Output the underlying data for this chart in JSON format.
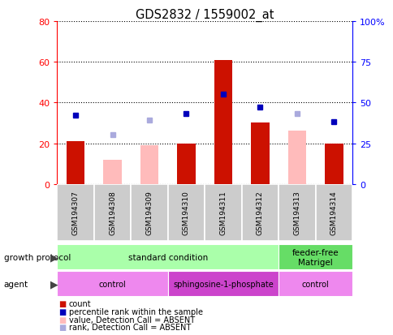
{
  "title": "GDS2832 / 1559002_at",
  "samples": [
    "GSM194307",
    "GSM194308",
    "GSM194309",
    "GSM194310",
    "GSM194311",
    "GSM194312",
    "GSM194313",
    "GSM194314"
  ],
  "count_values": [
    21,
    null,
    null,
    20,
    61,
    30,
    null,
    20
  ],
  "count_absent_values": [
    null,
    12,
    19,
    null,
    null,
    null,
    26,
    null
  ],
  "rank_present": [
    42,
    null,
    null,
    43,
    55,
    47,
    null,
    38
  ],
  "rank_absent": [
    null,
    30,
    39,
    null,
    null,
    null,
    43,
    null
  ],
  "left_ylim": [
    0,
    80
  ],
  "right_ylim": [
    0,
    100
  ],
  "left_yticks": [
    0,
    20,
    40,
    60,
    80
  ],
  "right_yticks": [
    0,
    25,
    50,
    75,
    100
  ],
  "right_yticklabels": [
    "0",
    "25",
    "50",
    "75",
    "100%"
  ],
  "bar_color_present": "#cc1100",
  "bar_color_absent": "#ffbbbb",
  "dot_color_present": "#0000bb",
  "dot_color_absent": "#aaaadd",
  "gp_color_standard": "#aaffaa",
  "gp_color_feeder": "#66dd66",
  "agent_color_control": "#ee88ee",
  "agent_color_sphingo": "#cc44cc",
  "growth_protocol_groups": [
    {
      "text": "standard condition",
      "start": 0,
      "end": 6,
      "color_key": "gp_color_standard"
    },
    {
      "text": "feeder-free\nMatrigel",
      "start": 6,
      "end": 8,
      "color_key": "gp_color_feeder"
    }
  ],
  "agent_groups": [
    {
      "text": "control",
      "start": 0,
      "end": 3,
      "color_key": "agent_color_control"
    },
    {
      "text": "sphingosine-1-phosphate",
      "start": 3,
      "end": 6,
      "color_key": "agent_color_sphingo"
    },
    {
      "text": "control",
      "start": 6,
      "end": 8,
      "color_key": "agent_color_control"
    }
  ],
  "legend_items": [
    {
      "label": "count",
      "color": "#cc1100"
    },
    {
      "label": "percentile rank within the sample",
      "color": "#0000bb"
    },
    {
      "label": "value, Detection Call = ABSENT",
      "color": "#ffbbbb"
    },
    {
      "label": "rank, Detection Call = ABSENT",
      "color": "#aaaadd"
    }
  ],
  "fig_width": 4.85,
  "fig_height": 4.14,
  "dpi": 100
}
